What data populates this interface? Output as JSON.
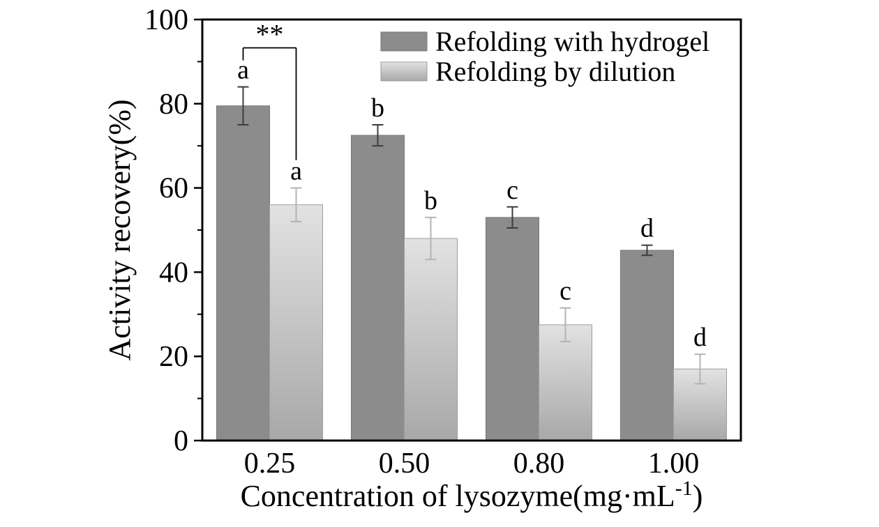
{
  "chart_data": {
    "type": "bar",
    "title": "",
    "ylabel": "Activity recovery(%)",
    "xlabel": "Concentration of lysozyme(mg·mL⁻¹)",
    "xlabel_main": "Concentration of lysozyme(mg·mL",
    "xlabel_sup": "-1",
    "xlabel_end": ")",
    "categories": [
      "0.25",
      "0.50",
      "0.80",
      "1.00"
    ],
    "ylim": [
      0,
      100
    ],
    "yticks": [
      0,
      20,
      40,
      60,
      80,
      100
    ],
    "grid": false,
    "legend_position": "top-right-inside",
    "series": [
      {
        "name": "Refolding with hydrogel",
        "values": [
          79.5,
          72.5,
          53,
          45.2
        ],
        "errors": [
          4.5,
          2.5,
          2.5,
          1.2
        ],
        "letter_labels": [
          "a",
          "b",
          "c",
          "d"
        ],
        "bar_color": "#8c8c8c",
        "bar_edge_color": "#777777",
        "error_color": "#3c3c3c",
        "label_color": "#000000"
      },
      {
        "name": "Refolding by dilution",
        "values": [
          56,
          48,
          27.5,
          17
        ],
        "errors": [
          4,
          5,
          4,
          3.5
        ],
        "letter_labels": [
          "a",
          "b",
          "c",
          "d"
        ],
        "bar_color_top": "#e2e2e2",
        "bar_color_bottom": "#a8a8a8",
        "bar_edge_color": "#9c9c9c",
        "error_color": "#b3b3b3",
        "label_color": "#b5b5b5"
      }
    ],
    "significance": {
      "text": "**",
      "category_index": 0,
      "between_series": [
        0,
        1
      ]
    },
    "colors": {
      "axis": "#000000",
      "background": "#ffffff"
    }
  }
}
